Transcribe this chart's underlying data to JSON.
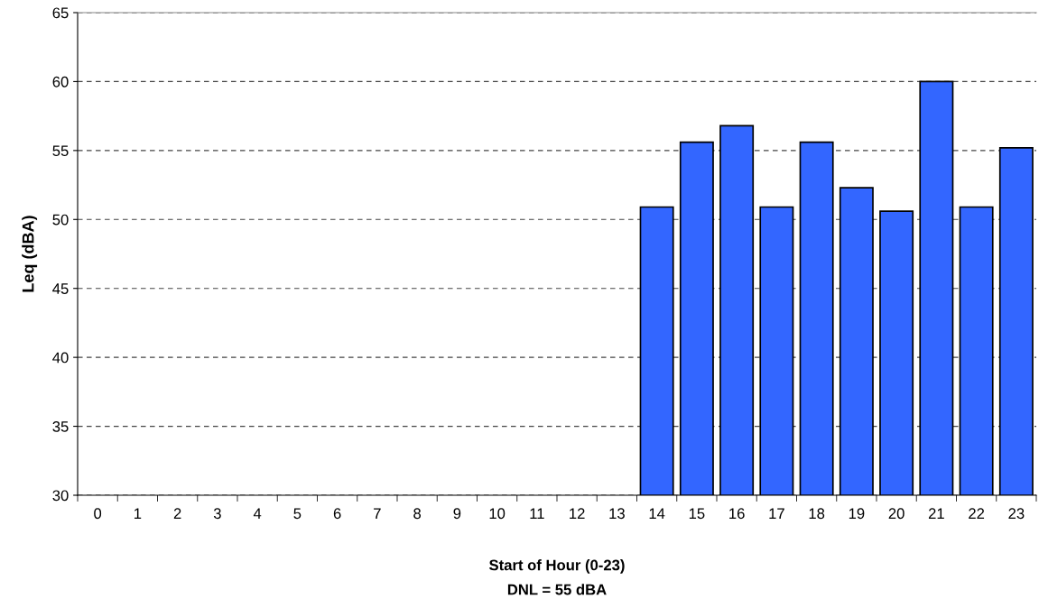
{
  "chart_data": {
    "type": "bar",
    "xlabel": "Start of Hour (0-23)",
    "ylabel": "Leq (dBA)",
    "annotations": [
      "DNL = 55 dBA"
    ],
    "categories": [
      "0",
      "1",
      "2",
      "3",
      "4",
      "5",
      "6",
      "7",
      "8",
      "9",
      "10",
      "11",
      "12",
      "13",
      "14",
      "15",
      "16",
      "17",
      "18",
      "19",
      "20",
      "21",
      "22",
      "23"
    ],
    "values": [
      null,
      null,
      null,
      null,
      null,
      null,
      null,
      null,
      null,
      null,
      null,
      null,
      null,
      null,
      50.9,
      55.6,
      56.8,
      50.9,
      55.6,
      52.3,
      50.6,
      60,
      50.9,
      55.2
    ],
    "color": "#3366ff",
    "ylim": [
      30,
      65
    ],
    "yticks": [
      30,
      35,
      40,
      45,
      50,
      55,
      60,
      65
    ],
    "grid": "y"
  }
}
